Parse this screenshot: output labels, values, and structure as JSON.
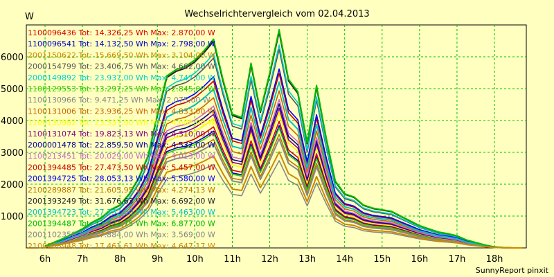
{
  "chart_data": {
    "type": "line",
    "title": "Wechselrichtervergleich vom 02.04.2013",
    "ylabel": "W",
    "xlabel": "",
    "credit": "SunnyReport pinxit",
    "x_ticks": [
      "6h",
      "7h",
      "8h",
      "9h",
      "10h",
      "11h",
      "12h",
      "13h",
      "14h",
      "15h",
      "16h",
      "17h",
      "18h"
    ],
    "y_ticks": [
      1000,
      2000,
      3000,
      4000,
      5000,
      6000
    ],
    "xlim": [
      5.5,
      18.85
    ],
    "ylim": [
      0,
      7000
    ],
    "grid": true,
    "legend_position": "top-left",
    "x": [
      6.0,
      6.25,
      6.5,
      6.75,
      7.0,
      7.25,
      7.5,
      7.75,
      8.0,
      8.25,
      8.5,
      8.75,
      9.0,
      9.25,
      9.5,
      9.75,
      10.0,
      10.25,
      10.5,
      10.75,
      11.0,
      11.25,
      11.5,
      11.75,
      12.0,
      12.25,
      12.5,
      12.75,
      13.0,
      13.25,
      13.5,
      13.75,
      14.0,
      14.25,
      14.5,
      14.75,
      15.0,
      15.25,
      15.5,
      15.75,
      16.0,
      16.25,
      16.5,
      16.75,
      17.0,
      17.25,
      17.5,
      17.75,
      18.0,
      18.25,
      18.5,
      18.75
    ],
    "series": [
      {
        "name": "1100096436 Tot: 14.326,25 Wh Max: 2.870,00 W",
        "color": "#DD0000",
        "scale": 0.58
      },
      {
        "name": "1100096541 Tot: 14.132,50 Wh Max: 2.798,00 W",
        "color": "#0000CC",
        "scale": 0.56
      },
      {
        "name": "2001150622 Tot: 15.669,50 Wh Max: 3.104,00 W",
        "color": "#CC8800",
        "scale": 0.62
      },
      {
        "name": "2000154799 Tot: 23.406,75 Wh Max: 4.662,00 W",
        "color": "#555555",
        "scale": 0.91
      },
      {
        "name": "2000149892 Tot: 23.937,00 Wh Max: 4.747,00 W",
        "color": "#00D0D0",
        "scale": 0.93
      },
      {
        "name": "1100129553 Tot: 13.297,25 Wh Max: 2.845,00 W",
        "color": "#33CC00",
        "scale": 0.55
      },
      {
        "name": "1100130966 Tot: 9.471,25 Wh Max: 2.075,00 W",
        "color": "#888888",
        "scale": 0.4
      },
      {
        "name": "1100131006 Tot: 23.936,25 Wh Max: 4.833,00 W",
        "color": "#CC6600",
        "scale": 0.72
      },
      {
        "name": "1100130982 Tot: 23.537,00 Wh Max: 4.688,00 W",
        "color": "#FFFF00",
        "scale": 0.62
      },
      {
        "name": "1100131074 Tot: 19.823,13 Wh Max: 4.310,00 W",
        "color": "#880088",
        "scale": 0.64
      },
      {
        "name": "2000001478 Tot: 22.859,50 Wh Max: 4.532,00 W",
        "color": "#000099",
        "scale": 0.66
      },
      {
        "name": "1100213451 Tot: 20.029,00 Wh Max: 4.013,00 W",
        "color": "#CC66CC",
        "scale": 0.68
      },
      {
        "name": "2001394485 Tot: 27.473,50 Wh Max: 5.457,00 W",
        "color": "#CC0000",
        "scale": 0.8
      },
      {
        "name": "2001394725 Tot: 28.053,13 Wh Max: 5.580,00 W",
        "color": "#0000FF",
        "scale": 0.82
      },
      {
        "name": "2100289887 Tot: 21.605,95 Wh Max: 4.274,13 W",
        "color": "#BB7700",
        "scale": 0.52
      },
      {
        "name": "2001393249 Tot: 31.676,63 Wh Max: 6.692,00 W",
        "color": "#222222",
        "scale": 0.99
      },
      {
        "name": "2001394723 Tot: 27.332,00 Wh Max: 5.463,00 W",
        "color": "#00C0C0",
        "scale": 0.76
      },
      {
        "name": "2001394487 Tot: 32.431,75 Wh Max: 6.877,00 W",
        "color": "#00BB00",
        "scale": 1.0
      },
      {
        "name": "2001102358 Tot: 17.884,00 Wh Max: 3.569,00 W",
        "color": "#888888",
        "scale": 0.5
      },
      {
        "name": "2100288948 Tot: 17.461,61 Wh Max: 4.647,17 W",
        "color": "#CC8800",
        "scale": 0.44
      }
    ],
    "base_profile": [
      50,
      180,
      300,
      450,
      600,
      800,
      950,
      1200,
      1350,
      1700,
      2200,
      2900,
      4200,
      5400,
      5600,
      5700,
      5900,
      6200,
      6550,
      5300,
      4200,
      4100,
      5800,
      4300,
      5500,
      6850,
      5300,
      4900,
      3300,
      5100,
      3500,
      2100,
      1700,
      1600,
      1350,
      1250,
      1200,
      1150,
      1000,
      850,
      700,
      600,
      500,
      450,
      380,
      250,
      170,
      90,
      30,
      10,
      0,
      0
    ]
  }
}
